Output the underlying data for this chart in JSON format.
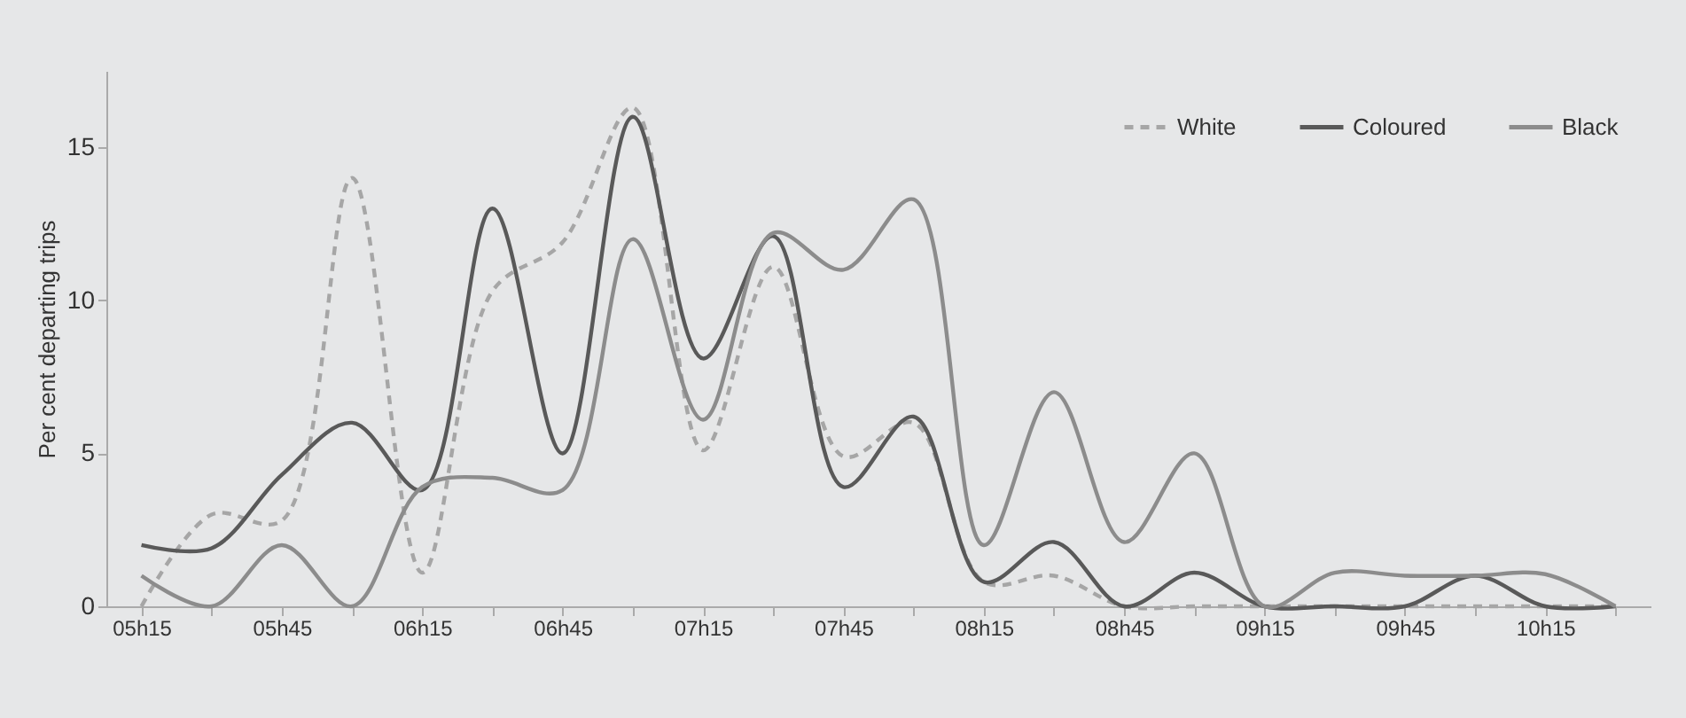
{
  "chart_data": {
    "type": "line",
    "ylabel": "Per cent departing trips",
    "categories": [
      "05h15",
      null,
      "05h45",
      null,
      "06h15",
      null,
      "06h45",
      null,
      "07h15",
      null,
      "07h45",
      null,
      "08h15",
      null,
      "08h45",
      null,
      "09h15",
      null,
      "09h45",
      null,
      "10h15",
      null
    ],
    "series": [
      {
        "name": "White",
        "color": "#a6a6a6",
        "line_style": "dashed",
        "values": [
          0,
          3,
          2.8,
          14,
          1.1,
          10.3,
          11.9,
          16.3,
          5.1,
          11.1,
          4.9,
          6,
          0.8,
          1,
          0,
          0,
          0,
          0,
          0,
          0,
          0,
          0
        ]
      },
      {
        "name": "Coloured",
        "color": "#595959",
        "line_style": "solid",
        "values": [
          2,
          1.9,
          4.3,
          6,
          3.8,
          13,
          5,
          16,
          8.1,
          12.1,
          3.9,
          6.2,
          0.8,
          2.1,
          0,
          1.1,
          0,
          0,
          0,
          1,
          0,
          0
        ]
      },
      {
        "name": "Black",
        "color": "#8c8c8c",
        "line_style": "solid",
        "values": [
          1,
          0,
          2,
          0,
          3.9,
          4.2,
          3.8,
          12,
          6.1,
          12.2,
          11,
          13.3,
          2,
          7,
          2.1,
          5,
          0,
          1.1,
          1,
          1,
          1.05,
          0
        ]
      }
    ],
    "ylim": [
      0,
      17.5
    ],
    "yticks": [
      0,
      5,
      10,
      15
    ],
    "grid": false,
    "legend": "top right",
    "marker": "none"
  }
}
